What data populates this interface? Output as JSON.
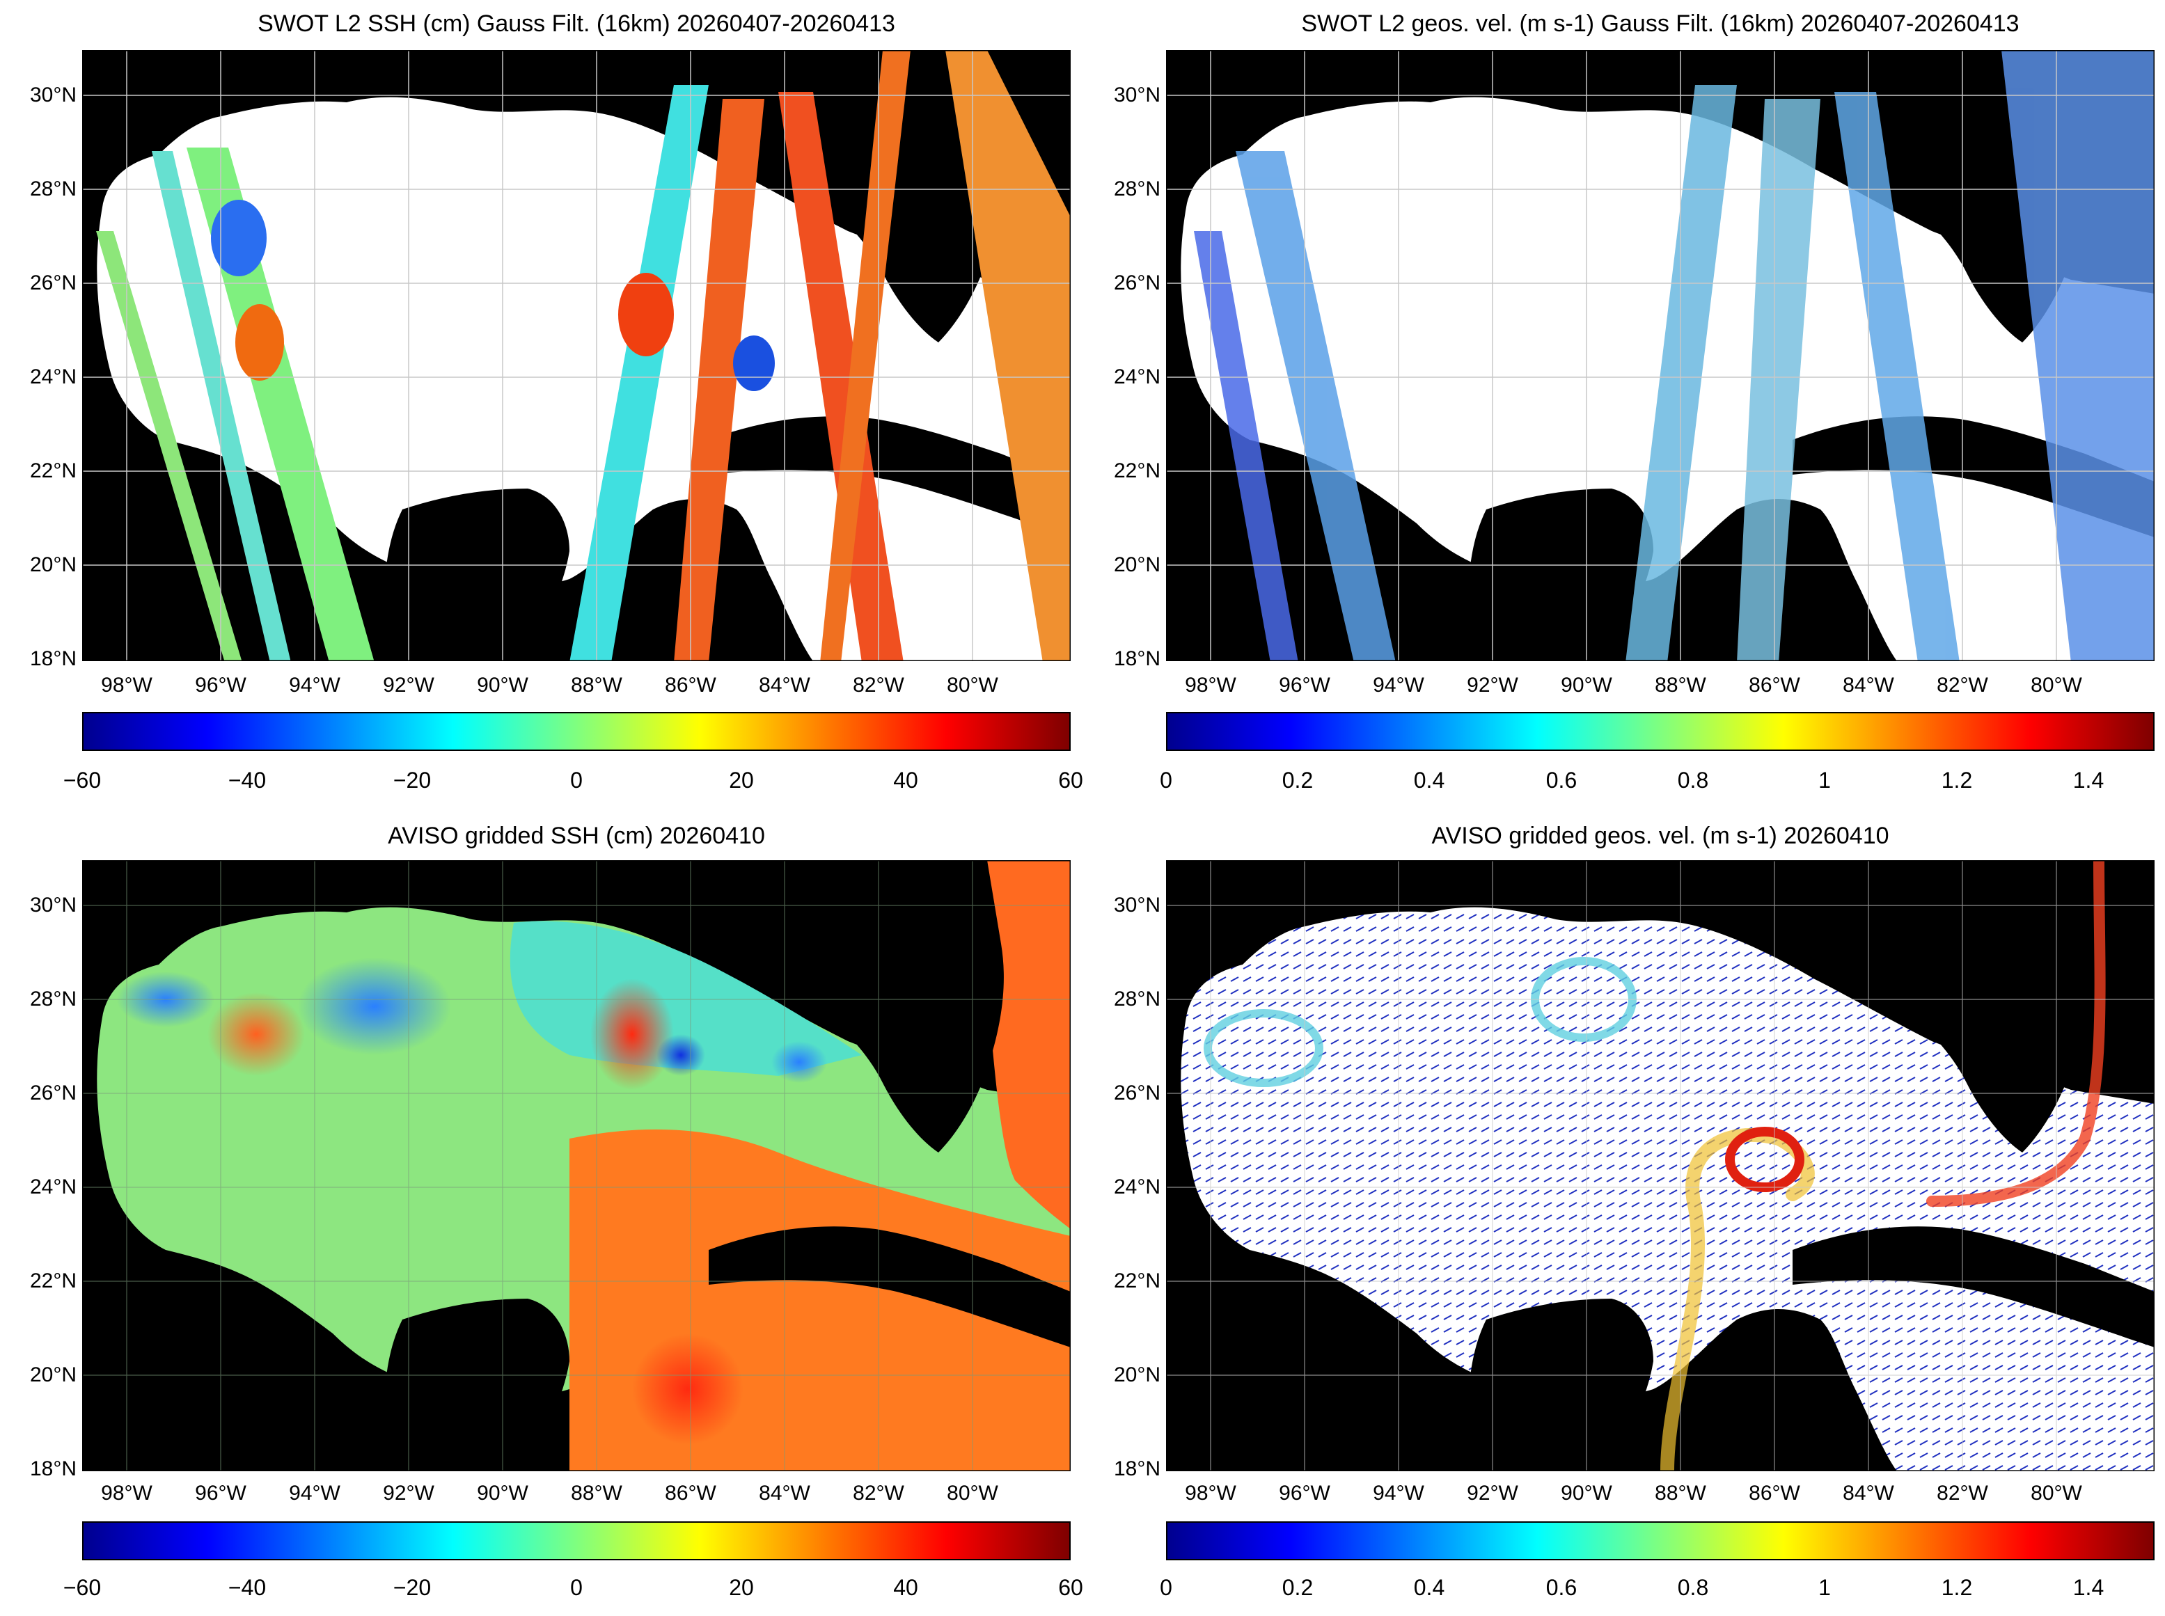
{
  "panels": [
    {
      "id": "swot-ssh",
      "title": "SWOT L2 SSH (cm) Gauss Filt. (16km) 20260407-20260413",
      "colorbar_ticks": [
        "−60",
        "−40",
        "−20",
        "0",
        "20",
        "40",
        "60"
      ],
      "colorbar_range": [
        -60,
        60
      ]
    },
    {
      "id": "swot-vel",
      "title": "SWOT L2 geos. vel. (m s-1) Gauss Filt. (16km) 20260407-20260413",
      "colorbar_ticks": [
        "0",
        "0.2",
        "0.4",
        "0.6",
        "0.8",
        "1",
        "1.2",
        "1.4"
      ],
      "colorbar_range": [
        0,
        1.5
      ]
    },
    {
      "id": "aviso-ssh",
      "title": "AVISO gridded SSH (cm) 20260410",
      "colorbar_ticks": [
        "−60",
        "−40",
        "−20",
        "0",
        "20",
        "40",
        "60"
      ],
      "colorbar_range": [
        -60,
        60
      ]
    },
    {
      "id": "aviso-vel",
      "title": "AVISO gridded geos. vel. (m s-1)  20260410",
      "colorbar_ticks": [
        "0",
        "0.2",
        "0.4",
        "0.6",
        "0.8",
        "1",
        "1.2",
        "1.4"
      ],
      "colorbar_range": [
        0,
        1.5
      ]
    }
  ],
  "lat_ticks": [
    "30°N",
    "28°N",
    "26°N",
    "24°N",
    "22°N",
    "20°N",
    "18°N"
  ],
  "lon_ticks": [
    "98°W",
    "96°W",
    "94°W",
    "92°W",
    "90°W",
    "88°W",
    "86°W",
    "84°W",
    "82°W",
    "80°W"
  ],
  "colormap": "jet",
  "colors": {
    "land": "#000000",
    "no_data": "#ffffff",
    "grid": "#c8c8c8"
  }
}
